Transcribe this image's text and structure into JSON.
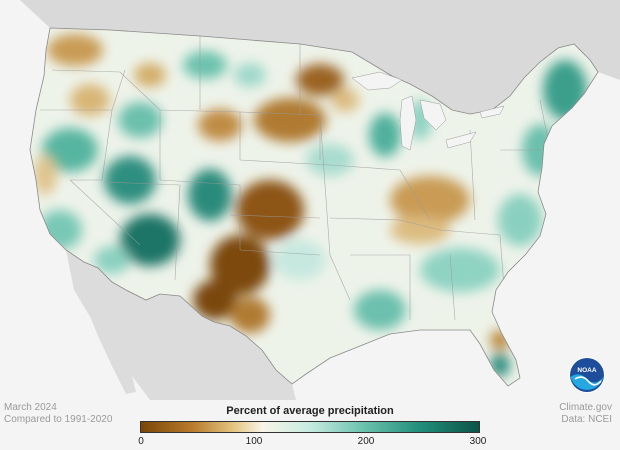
{
  "footer": {
    "date": "March 2024",
    "baseline": "Compared to 1991-2020",
    "source_site": "Climate.gov",
    "source_data": "Data: NCEI"
  },
  "legend": {
    "title": "Percent of average precipitation",
    "min": "0",
    "mid1": "100",
    "mid2": "200",
    "max": "300",
    "stops": [
      "#7a4607",
      "#b87a2b",
      "#e6c885",
      "#f8f4e8",
      "#c7ebe0",
      "#6fc4b0",
      "#23907d",
      "#0b5448"
    ]
  },
  "logo": {
    "text": "NOAA",
    "icon": "noaa-logo-icon"
  },
  "colors": {
    "dry_deep": "#7d4a0d",
    "dry": "#b07a32",
    "dry_light": "#ddbf84",
    "neutral": "#f3f1e8",
    "wet_light": "#bfe6dc",
    "wet": "#5cb9a4",
    "wet_deep": "#0e6557",
    "land_outside": "#d9d9d9",
    "water": "#f4f4f4"
  }
}
